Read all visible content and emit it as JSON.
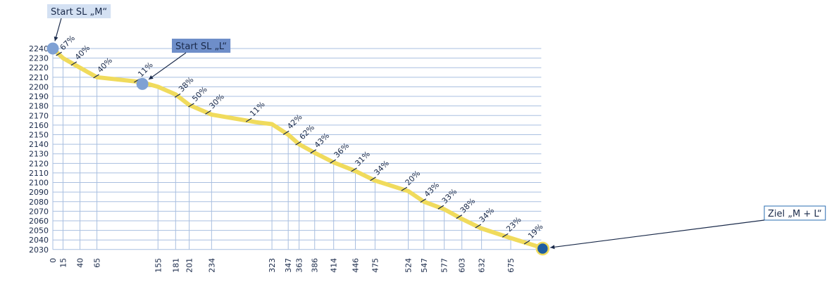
{
  "chart_data": {
    "type": "line",
    "title": "",
    "xlabel": "",
    "ylabel": "",
    "ylim": [
      2030,
      2240
    ],
    "y_ticks": [
      2240,
      2230,
      2220,
      2210,
      2200,
      2190,
      2180,
      2170,
      2160,
      2150,
      2140,
      2130,
      2120,
      2110,
      2100,
      2090,
      2080,
      2070,
      2060,
      2050,
      2040,
      2030
    ],
    "x_ticks": [
      0,
      15,
      40,
      65,
      155,
      181,
      201,
      234,
      323,
      347,
      363,
      386,
      414,
      446,
      475,
      524,
      547,
      577,
      603,
      632,
      675
    ],
    "grid": true,
    "series": [
      {
        "x": [
          0,
          15,
          40,
          65,
          130,
          155,
          181,
          201,
          234,
          300,
          323,
          347,
          363,
          386,
          414,
          446,
          475,
          524,
          547,
          577,
          603,
          632,
          675,
          720
        ],
        "y": [
          2240,
          2230,
          2220,
          2210,
          2205,
          2200,
          2192,
          2181,
          2171,
          2163,
          2161,
          2150,
          2140,
          2131,
          2121,
          2112,
          2102,
          2091,
          2080,
          2072,
          2062,
          2052,
          2042,
          2032
        ]
      }
    ],
    "slope_labels": [
      {
        "x": 10,
        "text": "67%"
      },
      {
        "x": 32,
        "text": "40%"
      },
      {
        "x": 65,
        "text": "40%"
      },
      {
        "x": 125,
        "text": "11%"
      },
      {
        "x": 185,
        "text": "38%"
      },
      {
        "x": 205,
        "text": "50%"
      },
      {
        "x": 230,
        "text": "30%"
      },
      {
        "x": 290,
        "text": "11%"
      },
      {
        "x": 345,
        "text": "42%"
      },
      {
        "x": 363,
        "text": "62%"
      },
      {
        "x": 385,
        "text": "43%"
      },
      {
        "x": 414,
        "text": "36%"
      },
      {
        "x": 445,
        "text": "31%"
      },
      {
        "x": 473,
        "text": "34%"
      },
      {
        "x": 519,
        "text": "20%"
      },
      {
        "x": 547,
        "text": "43%"
      },
      {
        "x": 573,
        "text": "33%"
      },
      {
        "x": 600,
        "text": "38%"
      },
      {
        "x": 628,
        "text": "34%"
      },
      {
        "x": 668,
        "text": "23%"
      },
      {
        "x": 700,
        "text": "19%"
      }
    ],
    "markers": [
      {
        "x": 0,
        "y": 2240,
        "label": "Start SL „M“",
        "color": "#7fa1d4"
      },
      {
        "x": 132,
        "y": 2203,
        "label": "Start SL „L“",
        "color": "#7fa1d4"
      },
      {
        "x": 722,
        "y": 2031,
        "label": "Ziel „M + L“",
        "color": "#1f5ea0"
      }
    ],
    "colors": {
      "line": "#f0db5c",
      "grid": "#a9bfe0",
      "text": "#1a2a4a",
      "callout_m_bg": "#d4e1f3",
      "callout_l_bg": "#6e8ec9",
      "callout_ziel_bg": "#ffffff",
      "callout_ziel_border": "#2a6cb0"
    }
  }
}
